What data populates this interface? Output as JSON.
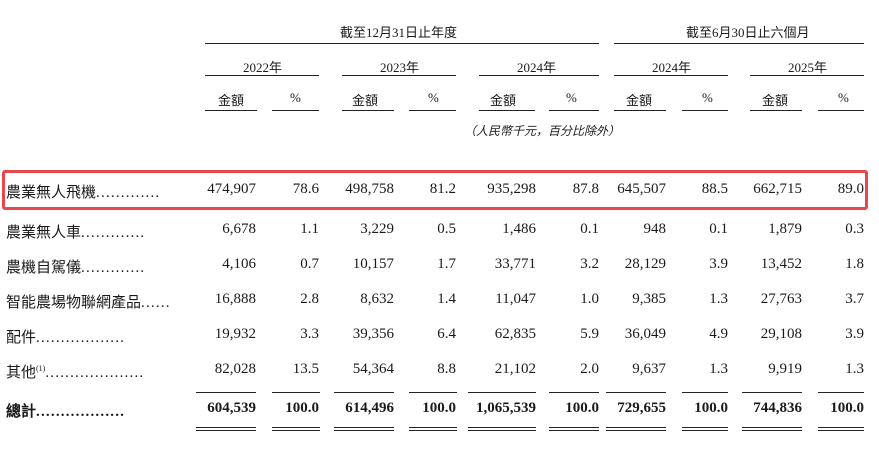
{
  "period_headers": {
    "year_end": "截至12月31日止年度",
    "six_months": "截至6月30日止六個月"
  },
  "years": [
    "2022年",
    "2023年",
    "2024年",
    "2024年",
    "2025年"
  ],
  "sub_headers": {
    "amount": "金額",
    "percent": "%"
  },
  "unit_note": "（人民幣千元，百分比除外）",
  "rows": [
    {
      "label": "農業無人飛機",
      "values": [
        "474,907",
        "78.6",
        "498,758",
        "81.2",
        "935,298",
        "87.8",
        "645,507",
        "88.5",
        "662,715",
        "89.0"
      ]
    },
    {
      "label": "農業無人車",
      "values": [
        "6,678",
        "1.1",
        "3,229",
        "0.5",
        "1,486",
        "0.1",
        "948",
        "0.1",
        "1,879",
        "0.3"
      ]
    },
    {
      "label": "農機自駕儀",
      "values": [
        "4,106",
        "0.7",
        "10,157",
        "1.7",
        "33,771",
        "3.2",
        "28,129",
        "3.9",
        "13,452",
        "1.8"
      ]
    },
    {
      "label": "智能農場物聯網產品",
      "values": [
        "16,888",
        "2.8",
        "8,632",
        "1.4",
        "11,047",
        "1.0",
        "9,385",
        "1.3",
        "27,763",
        "3.7"
      ]
    },
    {
      "label": "配件",
      "values": [
        "19,932",
        "3.3",
        "39,356",
        "6.4",
        "62,835",
        "5.9",
        "36,049",
        "4.9",
        "29,108",
        "3.9"
      ]
    },
    {
      "label": "其他",
      "footnote": "(1)",
      "values": [
        "82,028",
        "13.5",
        "54,364",
        "8.8",
        "21,102",
        "2.0",
        "9,637",
        "1.3",
        "9,919",
        "1.3"
      ]
    }
  ],
  "total": {
    "label": "總計",
    "values": [
      "604,539",
      "100.0",
      "614,496",
      "100.0",
      "1,065,539",
      "100.0",
      "729,655",
      "100.0",
      "744,836",
      "100.0"
    ]
  },
  "highlight_color": "#e8474d"
}
